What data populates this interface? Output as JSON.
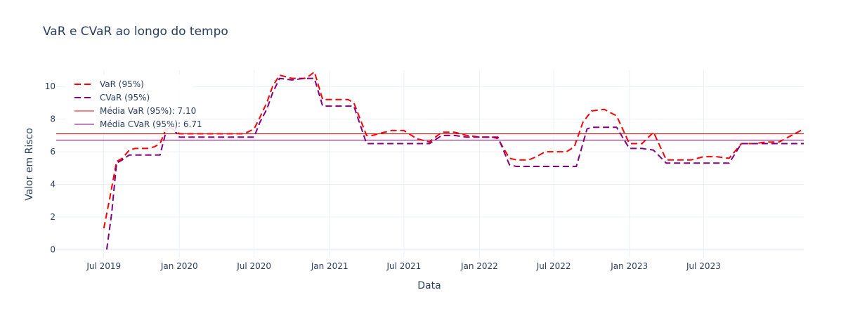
{
  "chart_data": {
    "type": "line",
    "title": "VaR e CVaR ao longo do tempo",
    "xlabel": "Data",
    "ylabel": "Valor em Risco",
    "xlim": [
      "2019-03-07",
      "2024-03-01"
    ],
    "ylim": [
      -0.5,
      11.0
    ],
    "grid": true,
    "legend_position": "top-left",
    "x_ticks": [
      {
        "date": "2019-07-01",
        "label": "Jul 2019"
      },
      {
        "date": "2020-01-01",
        "label": "Jan 2020"
      },
      {
        "date": "2020-07-01",
        "label": "Jul 2020"
      },
      {
        "date": "2021-01-01",
        "label": "Jan 2021"
      },
      {
        "date": "2021-07-01",
        "label": "Jul 2021"
      },
      {
        "date": "2022-01-01",
        "label": "Jan 2022"
      },
      {
        "date": "2022-07-01",
        "label": "Jul 2022"
      },
      {
        "date": "2023-01-01",
        "label": "Jan 2023"
      },
      {
        "date": "2023-07-01",
        "label": "Jul 2023"
      }
    ],
    "y_ticks": [
      0,
      2,
      4,
      6,
      8,
      10
    ],
    "series": [
      {
        "name": "VaR (95%)",
        "color": "#ff0000",
        "dash": "dash",
        "points": [
          [
            "2019-07-01",
            1.3
          ],
          [
            "2019-07-15",
            3.1
          ],
          [
            "2019-08-01",
            5.4
          ],
          [
            "2019-08-15",
            5.6
          ],
          [
            "2019-09-01",
            6.1
          ],
          [
            "2019-09-15",
            6.2
          ],
          [
            "2019-10-01",
            6.2
          ],
          [
            "2019-10-15",
            6.2
          ],
          [
            "2019-11-01",
            6.3
          ],
          [
            "2019-11-15",
            6.5
          ],
          [
            "2019-12-01",
            7.5
          ],
          [
            "2019-12-15",
            7.4
          ],
          [
            "2020-01-01",
            7.1
          ],
          [
            "2020-02-01",
            7.1
          ],
          [
            "2020-03-01",
            7.1
          ],
          [
            "2020-04-01",
            7.1
          ],
          [
            "2020-05-01",
            7.1
          ],
          [
            "2020-06-01",
            7.1
          ],
          [
            "2020-06-15",
            7.2
          ],
          [
            "2020-07-01",
            7.4
          ],
          [
            "2020-07-15",
            8.1
          ],
          [
            "2020-08-01",
            9.0
          ],
          [
            "2020-08-15",
            10.0
          ],
          [
            "2020-09-01",
            10.7
          ],
          [
            "2020-10-01",
            10.5
          ],
          [
            "2020-11-01",
            10.5
          ],
          [
            "2020-11-15",
            10.7
          ],
          [
            "2020-11-25",
            10.9
          ],
          [
            "2020-12-15",
            9.2
          ],
          [
            "2021-01-01",
            9.2
          ],
          [
            "2021-02-01",
            9.2
          ],
          [
            "2021-02-15",
            9.2
          ],
          [
            "2021-03-01",
            9.0
          ],
          [
            "2021-04-01",
            7.0
          ],
          [
            "2021-04-15",
            7.0
          ],
          [
            "2021-05-15",
            7.2
          ],
          [
            "2021-06-01",
            7.3
          ],
          [
            "2021-07-01",
            7.3
          ],
          [
            "2021-08-01",
            6.8
          ],
          [
            "2021-09-01",
            6.6
          ],
          [
            "2021-10-01",
            7.2
          ],
          [
            "2021-11-01",
            7.2
          ],
          [
            "2021-12-01",
            7.0
          ],
          [
            "2022-01-01",
            6.9
          ],
          [
            "2022-02-01",
            6.9
          ],
          [
            "2022-02-15",
            6.8
          ],
          [
            "2022-03-15",
            5.6
          ],
          [
            "2022-04-01",
            5.5
          ],
          [
            "2022-05-01",
            5.5
          ],
          [
            "2022-05-20",
            5.7
          ],
          [
            "2022-06-10",
            6.0
          ],
          [
            "2022-07-01",
            6.0
          ],
          [
            "2022-08-01",
            6.0
          ],
          [
            "2022-08-20",
            6.3
          ],
          [
            "2022-09-10",
            7.8
          ],
          [
            "2022-10-01",
            8.5
          ],
          [
            "2022-11-01",
            8.6
          ],
          [
            "2022-12-01",
            8.2
          ],
          [
            "2023-01-01",
            6.5
          ],
          [
            "2023-02-01",
            6.5
          ],
          [
            "2023-03-01",
            7.2
          ],
          [
            "2023-04-01",
            5.5
          ],
          [
            "2023-05-01",
            5.5
          ],
          [
            "2023-06-01",
            5.5
          ],
          [
            "2023-07-01",
            5.7
          ],
          [
            "2023-08-01",
            5.7
          ],
          [
            "2023-09-01",
            5.6
          ],
          [
            "2023-10-01",
            6.5
          ],
          [
            "2023-11-01",
            6.5
          ],
          [
            "2023-12-01",
            6.6
          ],
          [
            "2024-01-01",
            6.6
          ],
          [
            "2024-03-01",
            7.4
          ]
        ]
      },
      {
        "name": "CVaR (95%)",
        "color": "#800080",
        "dash": "dash",
        "points": [
          [
            "2019-07-08",
            0.0
          ],
          [
            "2019-07-20",
            2.2
          ],
          [
            "2019-08-01",
            5.3
          ],
          [
            "2019-08-15",
            5.5
          ],
          [
            "2019-09-01",
            5.8
          ],
          [
            "2019-10-01",
            5.8
          ],
          [
            "2019-11-01",
            5.8
          ],
          [
            "2019-11-15",
            5.8
          ],
          [
            "2019-12-01",
            7.4
          ],
          [
            "2019-12-15",
            7.5
          ],
          [
            "2020-01-01",
            6.9
          ],
          [
            "2020-02-01",
            6.9
          ],
          [
            "2020-03-01",
            6.9
          ],
          [
            "2020-04-01",
            6.9
          ],
          [
            "2020-05-01",
            6.9
          ],
          [
            "2020-06-01",
            6.9
          ],
          [
            "2020-07-01",
            6.9
          ],
          [
            "2020-07-15",
            7.8
          ],
          [
            "2020-08-01",
            8.6
          ],
          [
            "2020-08-15",
            9.6
          ],
          [
            "2020-09-01",
            10.5
          ],
          [
            "2020-10-01",
            10.4
          ],
          [
            "2020-11-01",
            10.5
          ],
          [
            "2020-11-25",
            10.5
          ],
          [
            "2020-12-15",
            8.8
          ],
          [
            "2021-01-01",
            8.8
          ],
          [
            "2021-02-01",
            8.8
          ],
          [
            "2021-03-01",
            8.8
          ],
          [
            "2021-04-01",
            6.5
          ],
          [
            "2021-05-01",
            6.5
          ],
          [
            "2021-06-01",
            6.5
          ],
          [
            "2021-07-01",
            6.5
          ],
          [
            "2021-08-01",
            6.5
          ],
          [
            "2021-09-01",
            6.5
          ],
          [
            "2021-10-01",
            7.0
          ],
          [
            "2021-11-01",
            7.0
          ],
          [
            "2021-12-01",
            6.9
          ],
          [
            "2022-01-01",
            6.9
          ],
          [
            "2022-02-01",
            6.9
          ],
          [
            "2022-02-15",
            6.9
          ],
          [
            "2022-03-15",
            5.2
          ],
          [
            "2022-04-01",
            5.1
          ],
          [
            "2022-05-01",
            5.1
          ],
          [
            "2022-06-01",
            5.1
          ],
          [
            "2022-07-01",
            5.1
          ],
          [
            "2022-08-01",
            5.1
          ],
          [
            "2022-08-25",
            5.1
          ],
          [
            "2022-09-20",
            7.4
          ],
          [
            "2022-10-01",
            7.5
          ],
          [
            "2022-11-01",
            7.5
          ],
          [
            "2022-12-01",
            7.5
          ],
          [
            "2023-01-01",
            6.2
          ],
          [
            "2023-02-01",
            6.2
          ],
          [
            "2023-03-01",
            6.1
          ],
          [
            "2023-04-01",
            5.3
          ],
          [
            "2023-05-01",
            5.3
          ],
          [
            "2023-06-01",
            5.3
          ],
          [
            "2023-07-01",
            5.3
          ],
          [
            "2023-08-01",
            5.3
          ],
          [
            "2023-09-01",
            5.3
          ],
          [
            "2023-10-01",
            6.5
          ],
          [
            "2023-11-01",
            6.5
          ],
          [
            "2023-12-01",
            6.5
          ],
          [
            "2024-01-01",
            6.5
          ],
          [
            "2024-03-01",
            6.5
          ]
        ]
      }
    ],
    "reference_lines": [
      {
        "name": "Média VaR (95%): 7.10",
        "value": 7.1,
        "color": "#ff0000"
      },
      {
        "name": "Média CVaR (95%): 6.71",
        "value": 6.71,
        "color": "#800080"
      }
    ]
  }
}
